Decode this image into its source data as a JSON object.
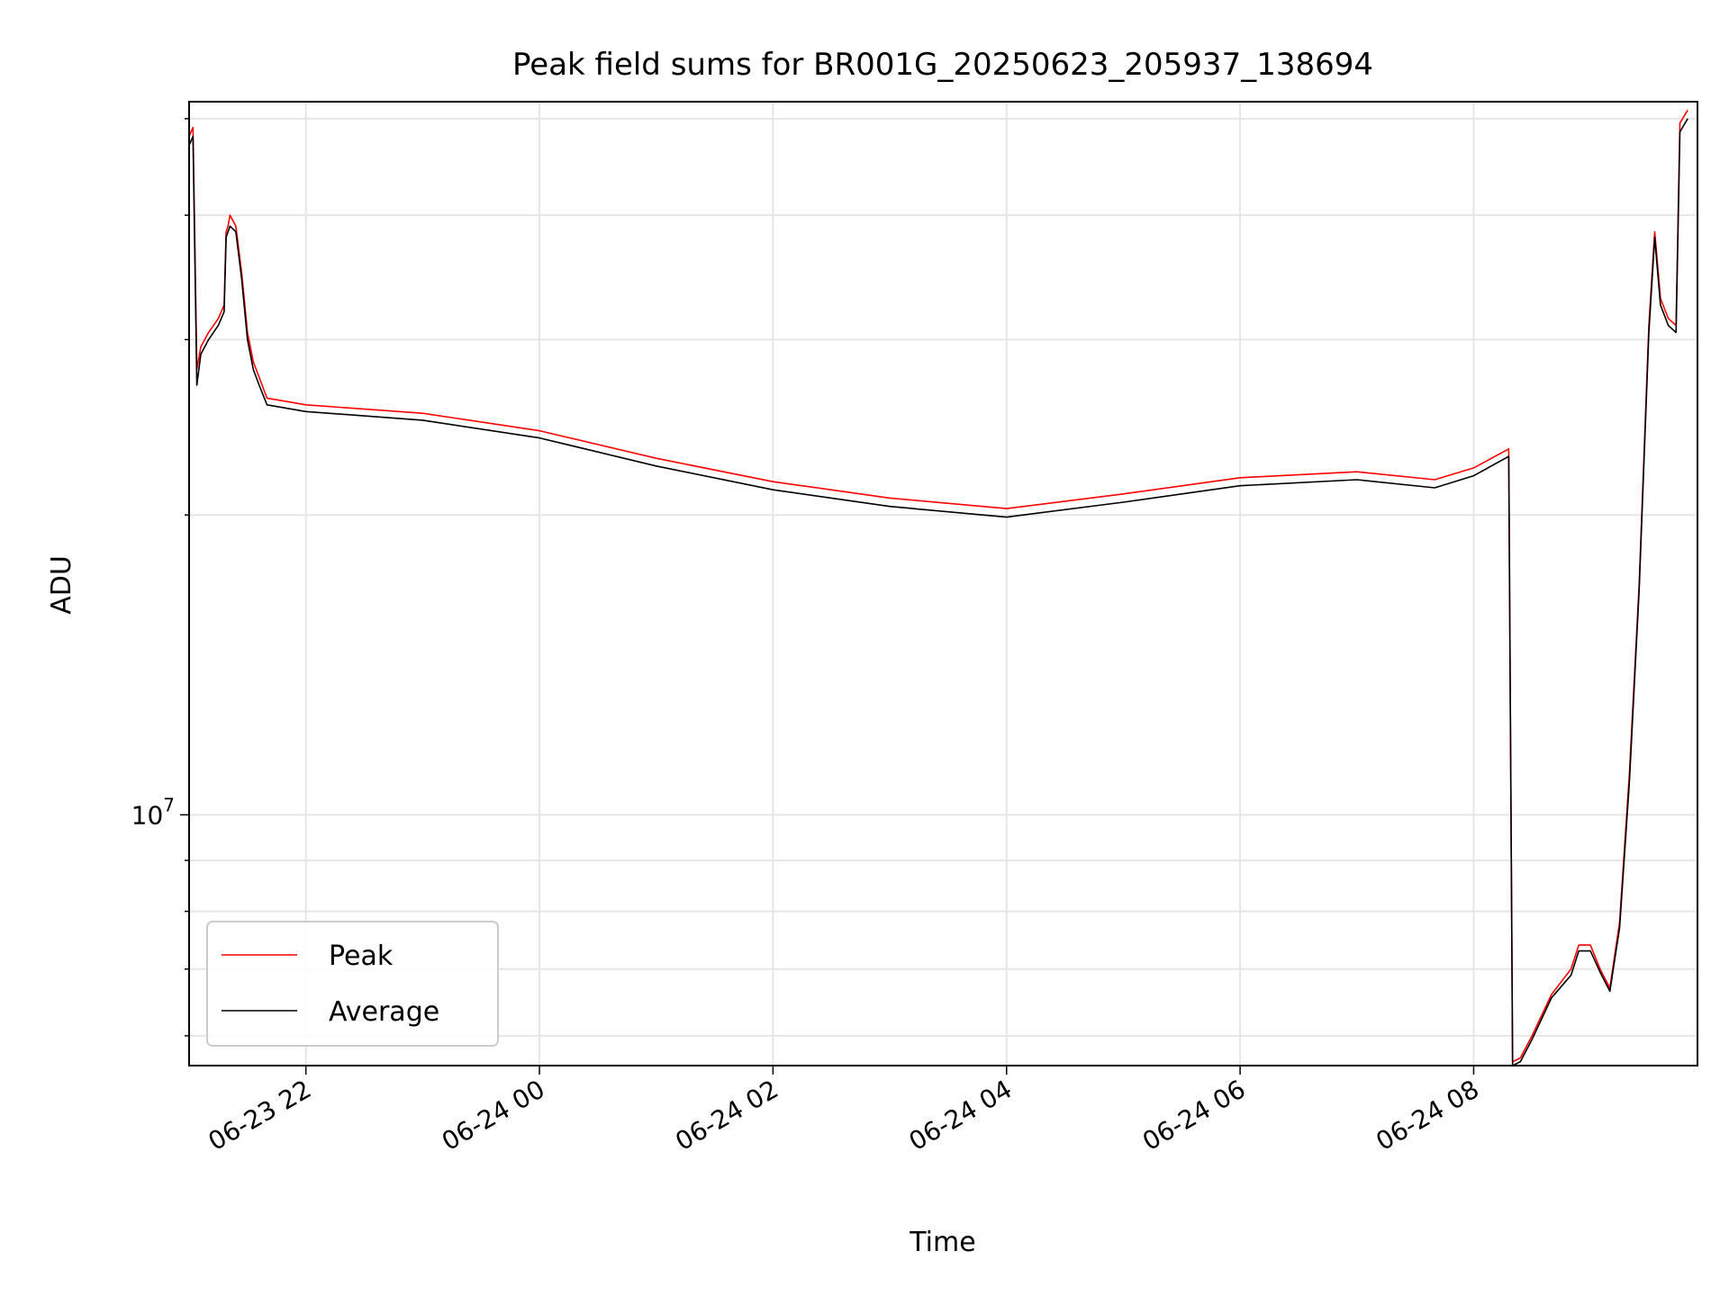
{
  "chart_data": {
    "type": "line",
    "title": "Peak field sums for BR001G_20250623_205937_138694",
    "xlabel": "Time",
    "ylabel": "ADU",
    "yscale": "log",
    "grid": true,
    "legend_placement": "lower-left",
    "xlim": [
      "2025-06-23 21:00",
      "2025-06-24 09:55"
    ],
    "ylim": [
      5600000,
      52000000
    ],
    "x_ticks": [
      {
        "value": "2025-06-23 22:00",
        "label": "06-23 22"
      },
      {
        "value": "2025-06-24 00:00",
        "label": "06-24 00"
      },
      {
        "value": "2025-06-24 02:00",
        "label": "06-24 02"
      },
      {
        "value": "2025-06-24 04:00",
        "label": "06-24 04"
      },
      {
        "value": "2025-06-24 06:00",
        "label": "06-24 06"
      },
      {
        "value": "2025-06-24 08:00",
        "label": "06-24 08"
      }
    ],
    "y_major_ticks": [
      {
        "value": 10000000,
        "base": "10",
        "exp": "7"
      }
    ],
    "series": [
      {
        "name": "Peak",
        "color": "#ff0000",
        "points": [
          [
            "2025-06-23 21:00",
            48000000
          ],
          [
            "2025-06-23 21:02",
            49000000
          ],
          [
            "2025-06-23 21:04",
            28000000
          ],
          [
            "2025-06-23 21:06",
            29500000
          ],
          [
            "2025-06-23 21:10",
            30500000
          ],
          [
            "2025-06-23 21:15",
            31500000
          ],
          [
            "2025-06-23 21:18",
            32500000
          ],
          [
            "2025-06-23 21:19",
            38500000
          ],
          [
            "2025-06-23 21:20",
            39000000
          ],
          [
            "2025-06-23 21:21",
            40000000
          ],
          [
            "2025-06-23 21:24",
            39000000
          ],
          [
            "2025-06-23 21:27",
            35000000
          ],
          [
            "2025-06-23 21:30",
            30500000
          ],
          [
            "2025-06-23 21:33",
            28500000
          ],
          [
            "2025-06-23 21:36",
            27500000
          ],
          [
            "2025-06-23 21:40",
            26200000
          ],
          [
            "2025-06-23 21:50",
            26000000
          ],
          [
            "2025-06-23 22:00",
            25800000
          ],
          [
            "2025-06-23 23:00",
            25300000
          ],
          [
            "2025-06-24 00:00",
            24300000
          ],
          [
            "2025-06-24 01:00",
            22800000
          ],
          [
            "2025-06-24 02:00",
            21600000
          ],
          [
            "2025-06-24 03:00",
            20800000
          ],
          [
            "2025-06-24 04:00",
            20300000
          ],
          [
            "2025-06-24 05:00",
            21000000
          ],
          [
            "2025-06-24 06:00",
            21800000
          ],
          [
            "2025-06-24 07:00",
            22100000
          ],
          [
            "2025-06-24 07:40",
            21700000
          ],
          [
            "2025-06-24 08:00",
            22300000
          ],
          [
            "2025-06-24 08:18",
            23300000
          ],
          [
            "2025-06-24 08:20",
            5650000
          ],
          [
            "2025-06-24 08:24",
            5700000
          ],
          [
            "2025-06-24 08:30",
            6000000
          ],
          [
            "2025-06-24 08:40",
            6600000
          ],
          [
            "2025-06-24 08:50",
            7000000
          ],
          [
            "2025-06-24 08:54",
            7400000
          ],
          [
            "2025-06-24 09:00",
            7400000
          ],
          [
            "2025-06-24 09:05",
            7000000
          ],
          [
            "2025-06-24 09:10",
            6700000
          ],
          [
            "2025-06-24 09:15",
            7800000
          ],
          [
            "2025-06-24 09:20",
            11000000
          ],
          [
            "2025-06-24 09:25",
            17000000
          ],
          [
            "2025-06-24 09:30",
            31000000
          ],
          [
            "2025-06-24 09:33",
            38500000
          ],
          [
            "2025-06-24 09:36",
            33000000
          ],
          [
            "2025-06-24 09:40",
            31500000
          ],
          [
            "2025-06-24 09:44",
            31000000
          ],
          [
            "2025-06-24 09:46",
            49500000
          ],
          [
            "2025-06-24 09:50",
            51000000
          ]
        ]
      },
      {
        "name": "Average",
        "color": "#000000",
        "points": [
          [
            "2025-06-23 21:00",
            47000000
          ],
          [
            "2025-06-23 21:02",
            48000000
          ],
          [
            "2025-06-23 21:04",
            27000000
          ],
          [
            "2025-06-23 21:06",
            29000000
          ],
          [
            "2025-06-23 21:10",
            30000000
          ],
          [
            "2025-06-23 21:15",
            31000000
          ],
          [
            "2025-06-23 21:18",
            32000000
          ],
          [
            "2025-06-23 21:19",
            38000000
          ],
          [
            "2025-06-23 21:20",
            38500000
          ],
          [
            "2025-06-23 21:21",
            39000000
          ],
          [
            "2025-06-23 21:24",
            38500000
          ],
          [
            "2025-06-23 21:27",
            34500000
          ],
          [
            "2025-06-23 21:30",
            30000000
          ],
          [
            "2025-06-23 21:33",
            28000000
          ],
          [
            "2025-06-23 21:36",
            27000000
          ],
          [
            "2025-06-23 21:40",
            25800000
          ],
          [
            "2025-06-23 21:50",
            25600000
          ],
          [
            "2025-06-23 22:00",
            25400000
          ],
          [
            "2025-06-23 23:00",
            24900000
          ],
          [
            "2025-06-24 00:00",
            23900000
          ],
          [
            "2025-06-24 01:00",
            22400000
          ],
          [
            "2025-06-24 02:00",
            21200000
          ],
          [
            "2025-06-24 03:00",
            20400000
          ],
          [
            "2025-06-24 04:00",
            19900000
          ],
          [
            "2025-06-24 05:00",
            20600000
          ],
          [
            "2025-06-24 06:00",
            21400000
          ],
          [
            "2025-06-24 07:00",
            21700000
          ],
          [
            "2025-06-24 07:40",
            21300000
          ],
          [
            "2025-06-24 08:00",
            21900000
          ],
          [
            "2025-06-24 08:18",
            22900000
          ],
          [
            "2025-06-24 08:20",
            5600000
          ],
          [
            "2025-06-24 08:24",
            5650000
          ],
          [
            "2025-06-24 08:30",
            5950000
          ],
          [
            "2025-06-24 08:40",
            6550000
          ],
          [
            "2025-06-24 08:50",
            6900000
          ],
          [
            "2025-06-24 08:54",
            7300000
          ],
          [
            "2025-06-24 09:00",
            7300000
          ],
          [
            "2025-06-24 09:05",
            6950000
          ],
          [
            "2025-06-24 09:10",
            6650000
          ],
          [
            "2025-06-24 09:15",
            7700000
          ],
          [
            "2025-06-24 09:20",
            10800000
          ],
          [
            "2025-06-24 09:25",
            16800000
          ],
          [
            "2025-06-24 09:30",
            30500000
          ],
          [
            "2025-06-24 09:33",
            38000000
          ],
          [
            "2025-06-24 09:36",
            32500000
          ],
          [
            "2025-06-24 09:40",
            31000000
          ],
          [
            "2025-06-24 09:44",
            30500000
          ],
          [
            "2025-06-24 09:46",
            48500000
          ],
          [
            "2025-06-24 09:50",
            50000000
          ]
        ]
      }
    ]
  }
}
